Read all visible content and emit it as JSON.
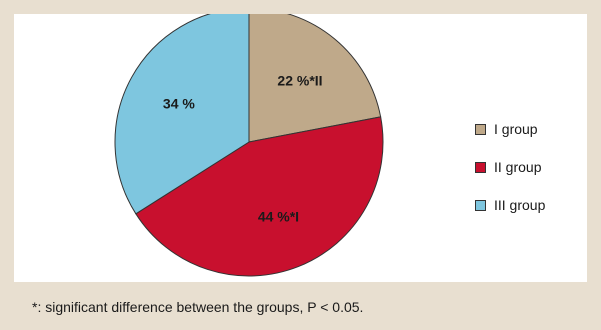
{
  "chart_data": {
    "type": "pie",
    "slices": [
      {
        "name": "I group",
        "value": 22,
        "label": "22 %*II",
        "color": "#bfa98a"
      },
      {
        "name": "II group",
        "value": 44,
        "label": "44 %*I",
        "color": "#c8102e"
      },
      {
        "name": "III group",
        "value": 34,
        "label": "34 %",
        "color": "#7ec6df"
      }
    ],
    "legend": {
      "placement": "right",
      "entries": [
        "I group",
        "II group",
        "III group"
      ]
    },
    "start_angle": "12 o'clock",
    "direction": "clockwise"
  },
  "footnote": "*: significant difference between the groups, P < 0.05."
}
